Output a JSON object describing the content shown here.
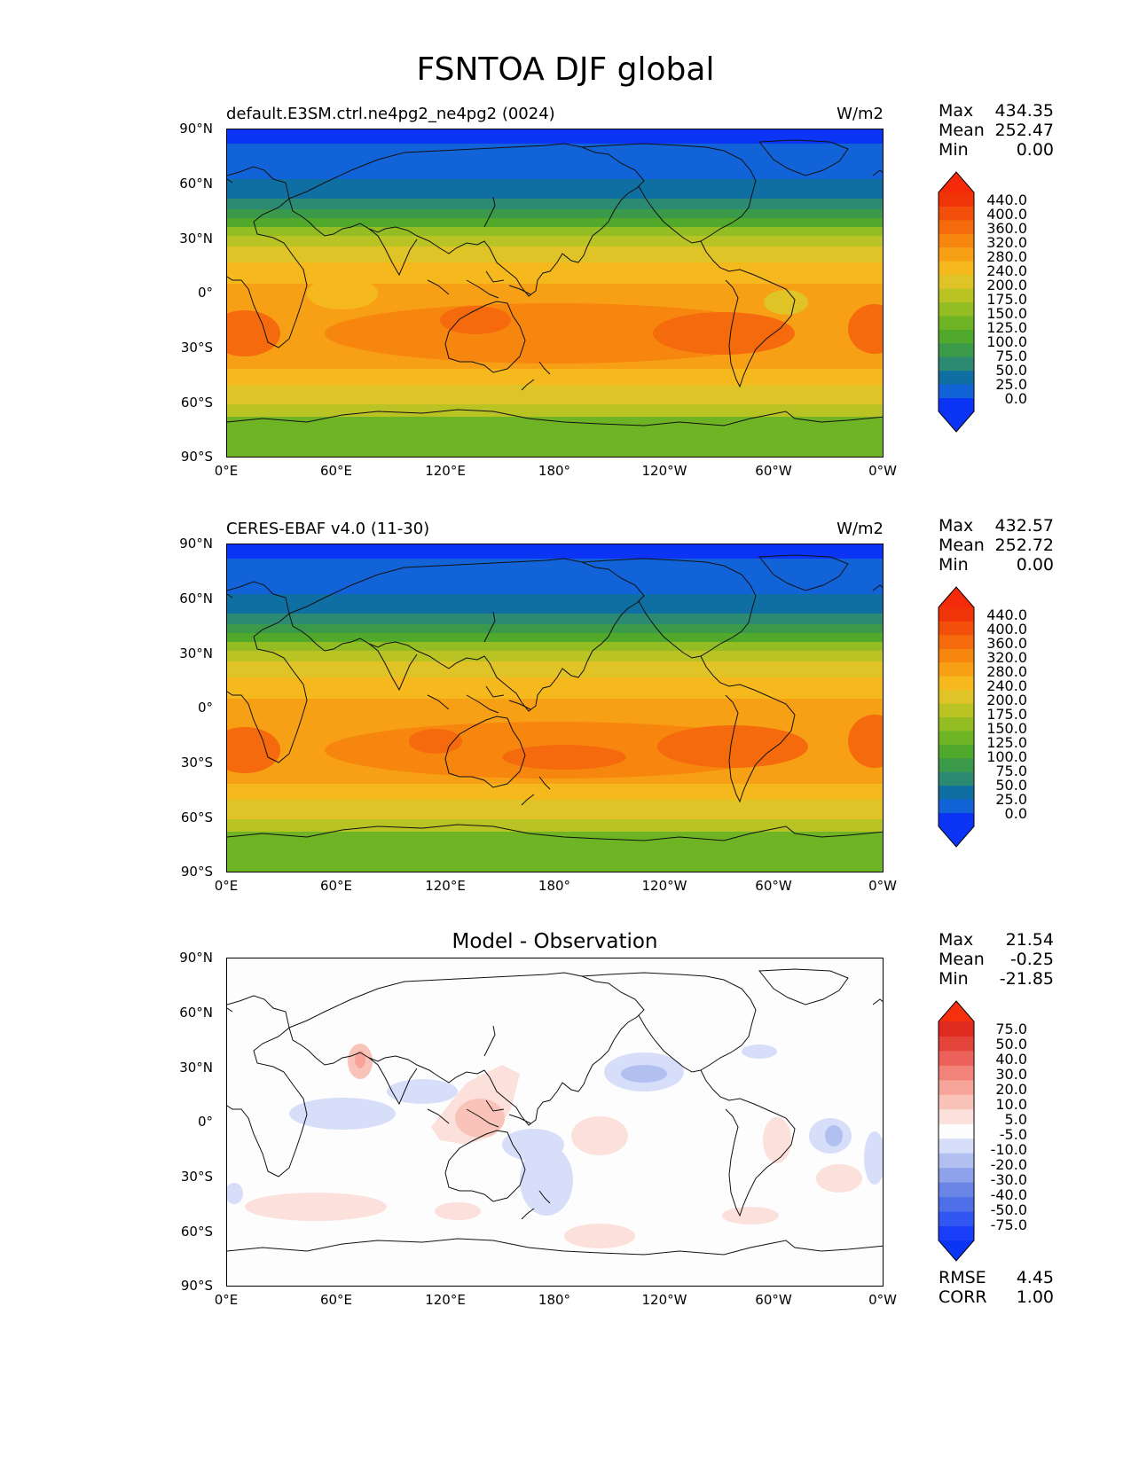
{
  "figure": {
    "title": "FSNTOA DJF global"
  },
  "panels": [
    {
      "name": "model",
      "title_left": "default.E3SM.ctrl.ne4pg2_ne4pg2 (0024)",
      "title_right": "W/m2",
      "title_center": "",
      "stats": [
        {
          "label": "Max",
          "value": "434.35"
        },
        {
          "label": "Mean",
          "value": "252.47"
        },
        {
          "label": "Min",
          "value": "0.00"
        }
      ],
      "colorbar_key": "abs"
    },
    {
      "name": "observation",
      "title_left": "CERES-EBAF v4.0 (11-30)",
      "title_right": "W/m2",
      "title_center": "",
      "stats": [
        {
          "label": "Max",
          "value": "432.57"
        },
        {
          "label": "Mean",
          "value": "252.72"
        },
        {
          "label": "Min",
          "value": "0.00"
        }
      ],
      "colorbar_key": "abs"
    },
    {
      "name": "difference",
      "title_left": "",
      "title_right": "",
      "title_center": "Model - Observation",
      "stats": [
        {
          "label": "Max",
          "value": "21.54"
        },
        {
          "label": "Mean",
          "value": "-0.25"
        },
        {
          "label": "Min",
          "value": "-21.85"
        }
      ],
      "extra_stats": [
        {
          "label": "RMSE",
          "value": "4.45"
        },
        {
          "label": "CORR",
          "value": "1.00"
        }
      ],
      "colorbar_key": "diff"
    }
  ],
  "axes": {
    "lat_labels": [
      "90°N",
      "60°N",
      "30°N",
      "0°",
      "30°S",
      "60°S",
      "90°S"
    ],
    "lon_labels": [
      "0°E",
      "60°E",
      "120°E",
      "180°",
      "120°W",
      "60°W",
      "0°W"
    ]
  },
  "colorbars": {
    "abs": {
      "labels": [
        "440.0",
        "400.0",
        "360.0",
        "320.0",
        "280.0",
        "240.0",
        "200.0",
        "175.0",
        "150.0",
        "125.0",
        "100.0",
        "75.0",
        "50.0",
        "25.0",
        "0.0"
      ],
      "colors": [
        "#0b34f5",
        "#1363d8",
        "#0f6fa3",
        "#2d8a72",
        "#3a9a4a",
        "#50a92a",
        "#6fb424",
        "#93bd22",
        "#b9c424",
        "#e0c326",
        "#f6b91d",
        "#f8a015",
        "#f7860f",
        "#f46a0c",
        "#f2500a",
        "#f03408"
      ],
      "max_color": "#f52a0a",
      "min_color": "#0b34f5"
    },
    "diff": {
      "labels": [
        "75.0",
        "50.0",
        "40.0",
        "30.0",
        "20.0",
        "10.0",
        "5.0",
        "-5.0",
        "-10.0",
        "-20.0",
        "-30.0",
        "-40.0",
        "-50.0",
        "-75.0"
      ],
      "colors": [
        "#1a3df7",
        "#3156f2",
        "#4f6fe8",
        "#6a85e6",
        "#8ea2eb",
        "#b1c0f1",
        "#d6defa",
        "#fdfdfd",
        "#fbe0dc",
        "#f9c3ba",
        "#f7a59a",
        "#f2837a",
        "#ec625a",
        "#e5443b",
        "#df2a20"
      ],
      "max_color": "#f5300c",
      "min_color": "#0b34f5"
    }
  }
}
